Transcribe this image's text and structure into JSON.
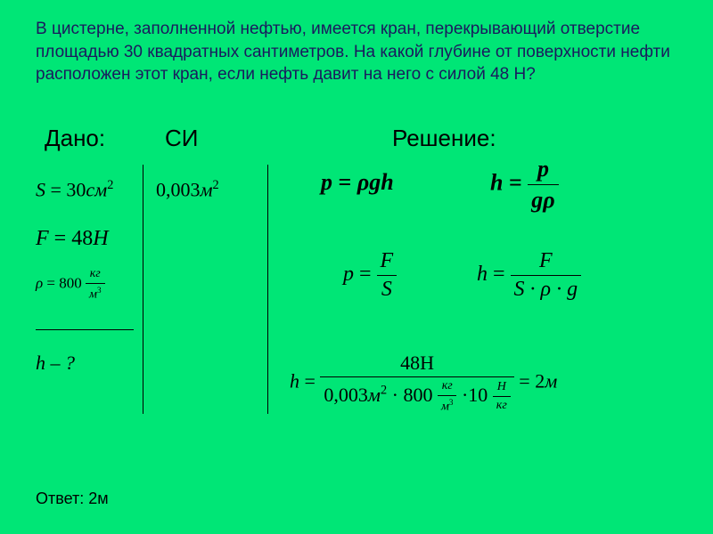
{
  "problem_text": "В цистерне, заполненной нефтью, имеется кран, перекрывающий отверстие площадью 30 квадратных сантиметров. На какой глубине от поверхности нефти расположен этот кран, если нефть давит на него с силой 48 Н?",
  "headers": {
    "given": "Дано:",
    "si": "СИ",
    "solution": "Решение:"
  },
  "given": {
    "S_value": "30",
    "S_unit": "см",
    "S_si": "0,003",
    "S_si_unit": "м",
    "F_value": "48",
    "F_unit": "Н",
    "rho_value": "800",
    "rho_unit_top": "кг",
    "rho_unit_bot": "м",
    "unknown": "h – ?"
  },
  "solution": {
    "f1_lhs": "p",
    "f1_rhs": "ρgh",
    "f2_lhs": "h",
    "f2_num": "p",
    "f2_den": "gρ",
    "f3_lhs": "p",
    "f3_num": "F",
    "f3_den": "S",
    "f4_lhs": "h",
    "f4_num": "F",
    "f4_den": "S · ρ · g",
    "f5_lhs": "h",
    "f5_num": "48Н",
    "f5_den_a": "0,003",
    "f5_den_unit_a": "м",
    "f5_den_b": "800",
    "f5_den_frac1_top": "кг",
    "f5_den_frac1_bot": "м",
    "f5_den_c": "10",
    "f5_den_frac2_top": "Н",
    "f5_den_frac2_bot": "кг",
    "f5_result": "2",
    "f5_result_unit": "м"
  },
  "answer": "Ответ: 2м",
  "colors": {
    "bg": "#00e676",
    "problem_text": "#1a1a5e",
    "math": "#000000"
  }
}
